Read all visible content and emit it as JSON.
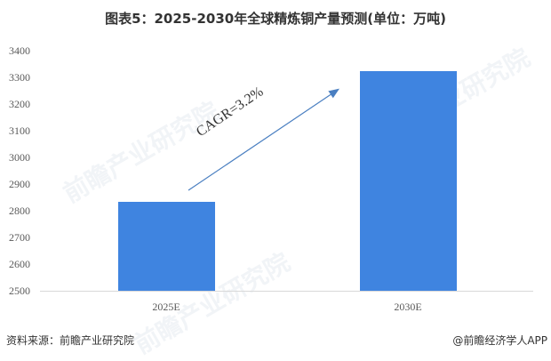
{
  "title": "图表5：2025-2030年全球精炼铜产量预测(单位：万吨)",
  "chart_data": {
    "type": "bar",
    "title": "图表5：2025-2030年全球精炼铜产量预测(单位：万吨)",
    "categories": [
      "2025E",
      "2030E"
    ],
    "values": [
      2833,
      3323
    ],
    "xlabel": "",
    "ylabel": "万吨",
    "ylim": [
      2500,
      3400
    ],
    "yticks": [
      "3400",
      "3300",
      "3200",
      "3100",
      "3000",
      "2900",
      "2800",
      "2700",
      "2600",
      "2500"
    ],
    "grid": false,
    "legend": "none",
    "bar_color": "#3f84e0",
    "annotations": [
      {
        "text": "CAGR=3.2%",
        "type": "arrow",
        "from": "2025E",
        "to": "2030E"
      }
    ]
  },
  "annotation": {
    "cagr": "CAGR=3.2%"
  },
  "watermark": {
    "text": "前瞻产业研究院"
  },
  "footer": {
    "source": "资料来源：前瞻产业研究院",
    "credit": "@前瞻经济学人APP"
  }
}
